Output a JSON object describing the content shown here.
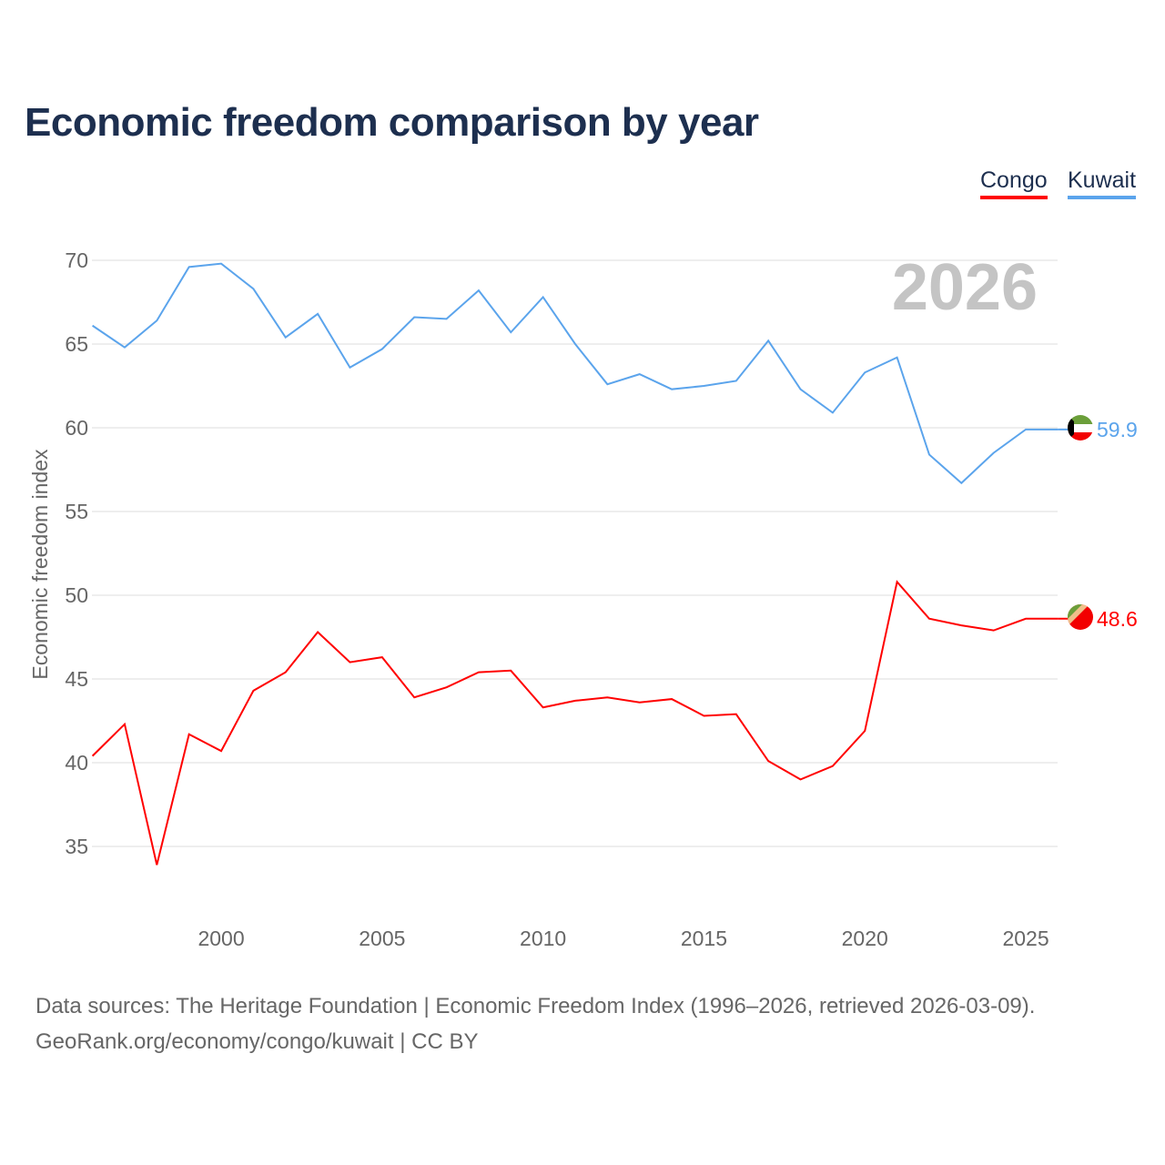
{
  "title": "Economic freedom comparison by year",
  "footer": {
    "line1": "Data sources: The Heritage Foundation | Economic Freedom Index (1996–2026, retrieved 2026-03-09).",
    "line2": "GeoRank.org/economy/congo/kuwait | CC BY"
  },
  "chart_data": {
    "type": "line",
    "title": "Economic freedom comparison by year",
    "ylabel": "Economic freedom index",
    "xlabel": "",
    "year_watermark": "2026",
    "xlim": [
      1996,
      2026
    ],
    "ylim": [
      31,
      73
    ],
    "xticks": [
      2000,
      2005,
      2010,
      2015,
      2020,
      2025
    ],
    "yticks": [
      35,
      40,
      45,
      50,
      55,
      60,
      65,
      70
    ],
    "grid": true,
    "legend_position": "top-right",
    "x": [
      1996,
      1997,
      1998,
      1999,
      2000,
      2001,
      2002,
      2003,
      2004,
      2005,
      2006,
      2007,
      2008,
      2009,
      2010,
      2011,
      2012,
      2013,
      2014,
      2015,
      2016,
      2017,
      2018,
      2019,
      2020,
      2021,
      2022,
      2023,
      2024,
      2025,
      2026
    ],
    "series": [
      {
        "name": "Congo",
        "color": "#ff0000",
        "end_label": "48.6",
        "values": [
          40.4,
          42.3,
          33.9,
          41.7,
          40.7,
          44.3,
          45.4,
          47.8,
          46.0,
          46.3,
          43.9,
          44.5,
          45.4,
          45.5,
          43.3,
          43.7,
          43.9,
          43.6,
          43.8,
          42.8,
          42.9,
          40.1,
          39.0,
          39.8,
          41.9,
          50.8,
          48.6,
          48.2,
          47.9,
          48.6,
          48.6
        ]
      },
      {
        "name": "Kuwait",
        "color": "#5ba4ec",
        "end_label": "59.9",
        "values": [
          66.1,
          64.8,
          66.4,
          69.6,
          69.8,
          68.3,
          65.4,
          66.8,
          63.6,
          64.7,
          66.6,
          66.5,
          68.2,
          65.7,
          67.8,
          65.0,
          62.6,
          63.2,
          62.3,
          62.5,
          62.8,
          65.2,
          62.3,
          60.9,
          63.3,
          64.2,
          58.4,
          56.7,
          58.5,
          59.9,
          59.9
        ]
      }
    ]
  }
}
